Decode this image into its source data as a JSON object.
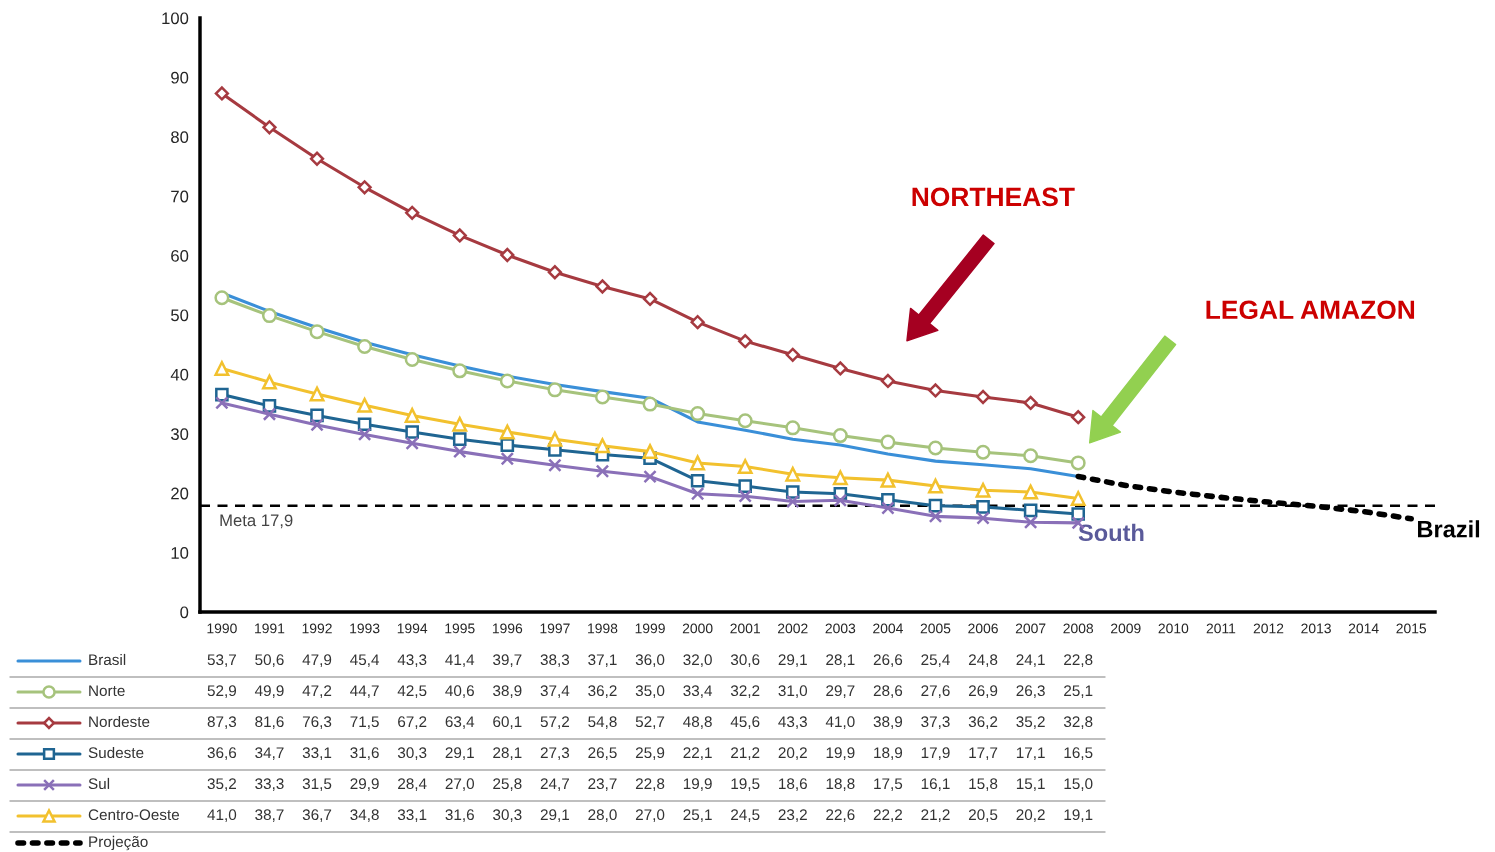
{
  "chart_data": {
    "type": "line",
    "categories": [
      "1990",
      "1991",
      "1992",
      "1993",
      "1994",
      "1995",
      "1996",
      "1997",
      "1998",
      "1999",
      "2000",
      "2001",
      "2002",
      "2003",
      "2004",
      "2005",
      "2006",
      "2007",
      "2008",
      "2009",
      "2010",
      "2011",
      "2012",
      "2013",
      "2014",
      "2015"
    ],
    "ylim": [
      0,
      100
    ],
    "yticks": [
      0,
      10,
      20,
      30,
      40,
      50,
      60,
      70,
      80,
      90,
      100
    ],
    "grid": false,
    "legend": "bottom",
    "line_style": "solid",
    "series": [
      {
        "name": "Brasil",
        "color": "#3a8fd8",
        "marker": "none",
        "values": [
          53.7,
          50.6,
          47.9,
          45.4,
          43.3,
          41.4,
          39.7,
          38.3,
          37.1,
          36.0,
          32.0,
          30.6,
          29.1,
          28.1,
          26.6,
          25.4,
          24.8,
          24.1,
          22.8,
          null,
          null,
          null,
          null,
          null,
          null,
          null
        ],
        "value_labels": [
          "53,7",
          "50,6",
          "47,9",
          "45,4",
          "43,3",
          "41,4",
          "39,7",
          "38,3",
          "37,1",
          "36,0",
          "32,0",
          "30,6",
          "29,1",
          "28,1",
          "26,6",
          "25,4",
          "24,8",
          "24,1",
          "22,8",
          null,
          null,
          null,
          null,
          null,
          null,
          null
        ]
      },
      {
        "name": "Norte",
        "color": "#a6c37c",
        "marker": "circle",
        "values": [
          52.9,
          49.9,
          47.2,
          44.7,
          42.5,
          40.6,
          38.9,
          37.4,
          36.2,
          35.0,
          33.4,
          32.2,
          31.0,
          29.7,
          28.6,
          27.6,
          26.9,
          26.3,
          25.1,
          null,
          null,
          null,
          null,
          null,
          null,
          null
        ],
        "value_labels": [
          "52,9",
          "49,9",
          "47,2",
          "44,7",
          "42,5",
          "40,6",
          "38,9",
          "37,4",
          "36,2",
          "35,0",
          "33,4",
          "32,2",
          "31,0",
          "29,7",
          "28,6",
          "27,6",
          "26,9",
          "26,3",
          "25,1",
          null,
          null,
          null,
          null,
          null,
          null,
          null
        ]
      },
      {
        "name": "Nordeste",
        "color": "#a63a40",
        "marker": "diamond",
        "values": [
          87.3,
          81.6,
          76.3,
          71.5,
          67.2,
          63.4,
          60.1,
          57.2,
          54.8,
          52.7,
          48.8,
          45.6,
          43.3,
          41.0,
          38.9,
          37.3,
          36.2,
          35.2,
          32.8,
          null,
          null,
          null,
          null,
          null,
          null,
          null
        ],
        "value_labels": [
          "87,3",
          "81,6",
          "76,3",
          "71,5",
          "67,2",
          "63,4",
          "60,1",
          "57,2",
          "54,8",
          "52,7",
          "48,8",
          "45,6",
          "43,3",
          "41,0",
          "38,9",
          "37,3",
          "36,2",
          "35,2",
          "32,8",
          null,
          null,
          null,
          null,
          null,
          null,
          null
        ]
      },
      {
        "name": "Sudeste",
        "color": "#1f6592",
        "marker": "square",
        "values": [
          36.6,
          34.7,
          33.1,
          31.6,
          30.3,
          29.1,
          28.1,
          27.3,
          26.5,
          25.9,
          22.1,
          21.2,
          20.2,
          19.9,
          18.9,
          17.9,
          17.7,
          17.1,
          16.5,
          null,
          null,
          null,
          null,
          null,
          null,
          null
        ],
        "value_labels": [
          "36,6",
          "34,7",
          "33,1",
          "31,6",
          "30,3",
          "29,1",
          "28,1",
          "27,3",
          "26,5",
          "25,9",
          "22,1",
          "21,2",
          "20,2",
          "19,9",
          "18,9",
          "17,9",
          "17,7",
          "17,1",
          "16,5",
          null,
          null,
          null,
          null,
          null,
          null,
          null
        ]
      },
      {
        "name": "Sul",
        "color": "#8a70b8",
        "marker": "cross",
        "values": [
          35.2,
          33.3,
          31.5,
          29.9,
          28.4,
          27.0,
          25.8,
          24.7,
          23.7,
          22.8,
          19.9,
          19.5,
          18.6,
          18.8,
          17.5,
          16.1,
          15.8,
          15.1,
          15.0,
          null,
          null,
          null,
          null,
          null,
          null,
          null
        ],
        "value_labels": [
          "35,2",
          "33,3",
          "31,5",
          "29,9",
          "28,4",
          "27,0",
          "25,8",
          "24,7",
          "23,7",
          "22,8",
          "19,9",
          "19,5",
          "18,6",
          "18,8",
          "17,5",
          "16,1",
          "15,8",
          "15,1",
          "15,0",
          null,
          null,
          null,
          null,
          null,
          null,
          null
        ]
      },
      {
        "name": "Centro-Oeste",
        "color": "#f2c12e",
        "marker": "triangle",
        "values": [
          41.0,
          38.7,
          36.7,
          34.8,
          33.1,
          31.6,
          30.3,
          29.1,
          28.0,
          27.0,
          25.1,
          24.5,
          23.2,
          22.6,
          22.2,
          21.2,
          20.5,
          20.2,
          19.1,
          null,
          null,
          null,
          null,
          null,
          null,
          null
        ],
        "value_labels": [
          "41,0",
          "38,7",
          "36,7",
          "34,8",
          "33,1",
          "31,6",
          "30,3",
          "29,1",
          "28,0",
          "27,0",
          "25,1",
          "24,5",
          "23,2",
          "22,6",
          "22,2",
          "21,2",
          "20,5",
          "20,2",
          "19,1",
          null,
          null,
          null,
          null,
          null,
          null,
          null
        ]
      },
      {
        "name": "Projeção",
        "color": "#000000",
        "marker": "none",
        "line_style": "dotted",
        "values": [
          null,
          null,
          null,
          null,
          null,
          null,
          null,
          null,
          null,
          null,
          null,
          null,
          null,
          null,
          null,
          null,
          null,
          null,
          22.8,
          21.3,
          20.2,
          19.3,
          18.5,
          17.8,
          16.9,
          15.7
        ]
      }
    ],
    "ref_lines": [
      {
        "axis": "y",
        "value": 17.9,
        "label": "Meta 17,9",
        "color": "#000000",
        "line_style": "dashed"
      }
    ],
    "annotations": [
      "NORTHEAST",
      "LEGAL AMAZON",
      "South",
      "Brazil"
    ]
  }
}
